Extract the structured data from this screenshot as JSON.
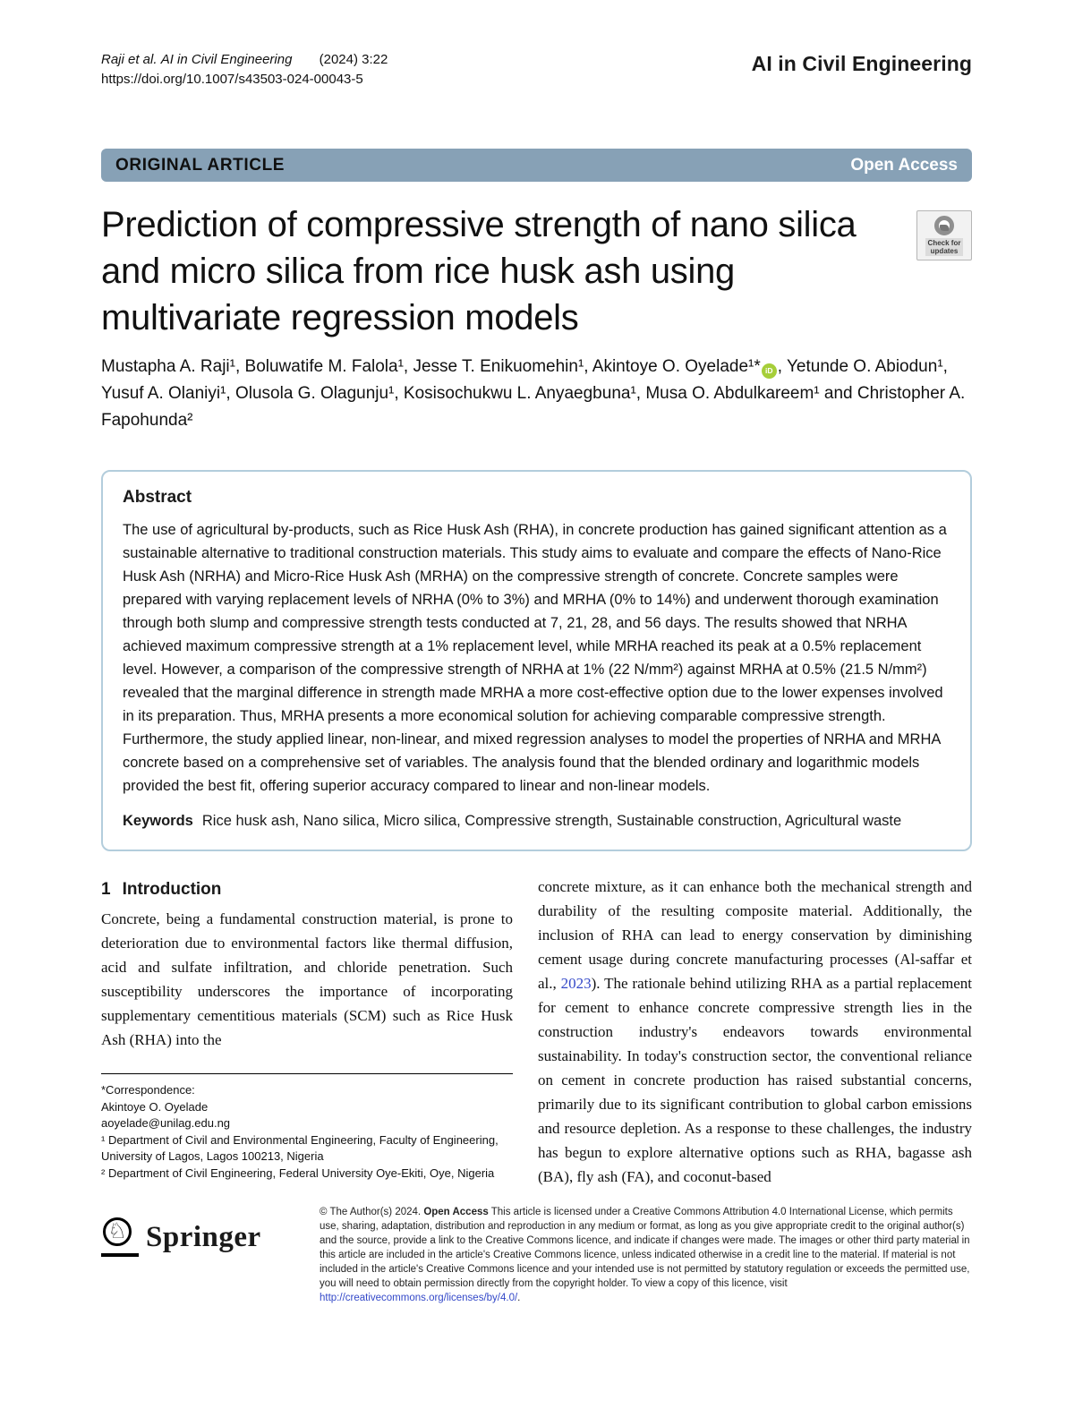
{
  "header": {
    "citation_authors": "Raji et al.",
    "citation_journal": "AI in Civil Engineering",
    "citation_volume": "(2024) 3:22",
    "doi": "https://doi.org/10.1007/s43503-024-00043-5",
    "journal_name": "AI in Civil Engineering"
  },
  "banner": {
    "label": "ORIGINAL ARTICLE",
    "open_access": "Open Access"
  },
  "article": {
    "title": "Prediction of compressive strength of nano silica and micro silica from rice husk ash using multivariate regression models",
    "check_updates_line1": "Check for",
    "check_updates_line2": "updates",
    "authors_part1": "Mustapha A. Raji¹, Boluwatife M. Falola¹, Jesse T. Enikuomehin¹, Akintoye O. Oyelade¹*",
    "orcid_icon_label": "iD",
    "authors_part2": ", Yetunde O. Abiodun¹, Yusuf A. Olaniyi¹, Olusola G. Olagunju¹, Kosisochukwu L. Anyaegbuna¹, Musa O. Abdulkareem¹ and Christopher A. Fapohunda²"
  },
  "abstract": {
    "heading": "Abstract",
    "body": "The use of agricultural by-products, such as Rice Husk Ash (RHA), in concrete production has gained significant attention as a sustainable alternative to traditional construction materials. This study aims to evaluate and compare the effects of Nano-Rice Husk Ash (NRHA) and Micro-Rice Husk Ash (MRHA) on the compressive strength of concrete. Concrete samples were prepared with varying replacement levels of NRHA (0% to 3%) and MRHA (0% to 14%) and underwent thorough examination through both slump and compressive strength tests conducted at 7, 21, 28, and 56 days. The results showed that NRHA achieved maximum compressive strength at a 1% replacement level, while MRHA reached its peak at a 0.5% replacement level. However, a comparison of the compressive strength of NRHA at 1% (22 N/mm²) against MRHA at 0.5% (21.5 N/mm²) revealed that the marginal difference in strength made MRHA a more cost-effective option due to the lower expenses involved in its preparation. Thus, MRHA presents a more economical solution for achieving comparable compressive strength. Furthermore, the study applied linear, non-linear, and mixed regression analyses to model the properties of NRHA and MRHA concrete based on a comprehensive set of variables. The analysis found that the blended ordinary and logarithmic models provided the best fit, offering superior accuracy compared to linear and non-linear models.",
    "keywords_label": "Keywords",
    "keywords": "Rice husk ash, Nano silica, Micro silica, Compressive strength, Sustainable construction, Agricultural waste"
  },
  "introduction": {
    "heading_number": "1",
    "heading_text": "Introduction",
    "left_column": "Concrete, being a fundamental construction material, is prone to deterioration due to environmental factors like thermal diffusion, acid and sulfate infiltration, and chloride penetration. Such susceptibility underscores the importance of incorporating supplementary cementitious materials (SCM) such as Rice Husk Ash (RHA) into the",
    "right_column_part1": "concrete mixture, as it can enhance both the mechanical strength and durability of the resulting composite material. Additionally, the inclusion of RHA can lead to energy conservation by diminishing cement usage during concrete manufacturing processes (Al-saffar et al., ",
    "citation_link": "2023",
    "right_column_part2": "). The rationale behind utilizing RHA as a partial replacement for cement to enhance concrete compressive strength lies in the construction industry's endeavors towards environmental sustainability. In today's construction sector, the conventional reliance on cement in concrete production has raised substantial concerns, primarily due to its significant contribution to global carbon emissions and resource depletion. As a response to these challenges, the industry has begun to explore alternative options such as RHA, bagasse ash (BA), fly ash (FA), and coconut-based"
  },
  "footnotes": {
    "correspondence_label": "*Correspondence:",
    "correspondence_name": "Akintoye O. Oyelade",
    "correspondence_email": "aoyelade@unilag.edu.ng",
    "affiliation1": "¹ Department of Civil and Environmental Engineering, Faculty of Engineering, University of Lagos, Lagos 100213, Nigeria",
    "affiliation2": "² Department of Civil Engineering, Federal University Oye-Ekiti, Oye, Nigeria"
  },
  "footer": {
    "publisher": "Springer",
    "license_prefix": "© The Author(s) 2024.",
    "license_bold": "Open Access",
    "license_body": "This article is licensed under a Creative Commons Attribution 4.0 International License, which permits use, sharing, adaptation, distribution and reproduction in any medium or format, as long as you give appropriate credit to the original author(s) and the source, provide a link to the Creative Commons licence, and indicate if changes were made. The images or other third party material in this article are included in the article's Creative Commons licence, unless indicated otherwise in a credit line to the material. If material is not included in the article's Creative Commons licence and your intended use is not permitted by statutory regulation or exceeds the permitted use, you will need to obtain permission directly from the copyright holder. To view a copy of this licence, visit ",
    "license_url": "http://creativecommons.org/licenses/by/4.0/",
    "license_suffix": "."
  },
  "colors": {
    "banner_bg": "#87a1b6",
    "abstract_border": "#b3cddc",
    "link_blue": "#3348c8",
    "orcid_green": "#a6ce39"
  }
}
